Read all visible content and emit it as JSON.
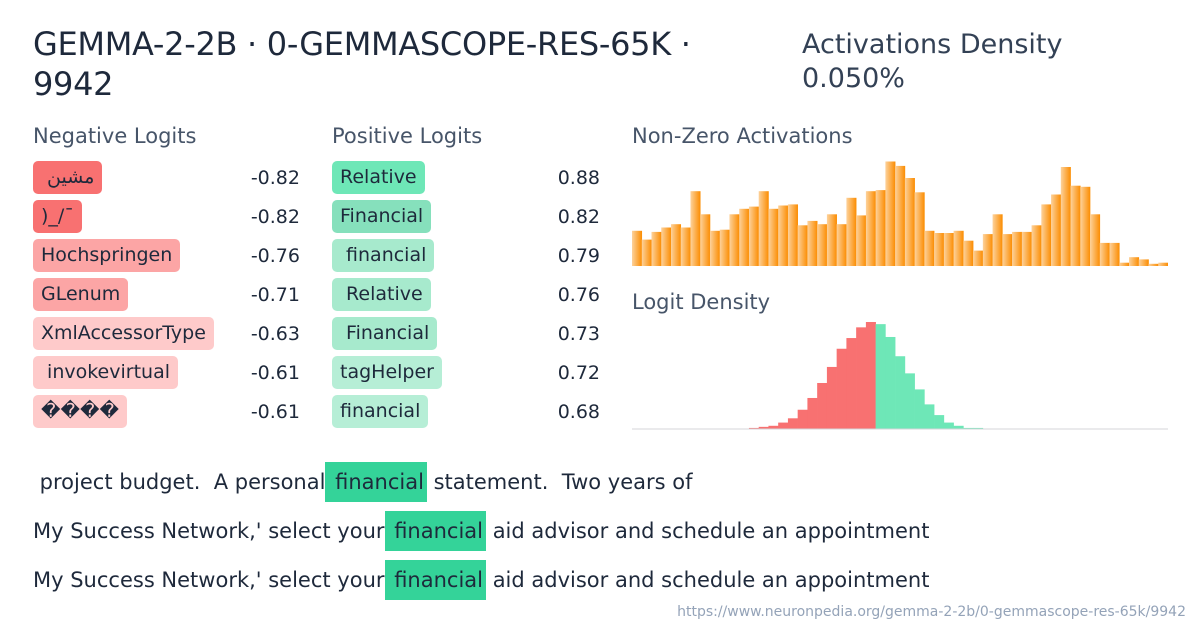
{
  "header": {
    "title": "GEMMA-2-2B · 0-GEMMASCOPE-RES-65K · 9942",
    "density_label": "Activations Density",
    "density_value": "0.050%"
  },
  "negative_logits": {
    "heading": "Negative Logits",
    "items": [
      {
        "token": " مشين",
        "value": "-0.82",
        "color": "#f87171"
      },
      {
        "token": ")_/¯",
        "value": "-0.82",
        "color": "#f87171"
      },
      {
        "token": "Hochspringen",
        "value": "-0.76",
        "color": "#fca5a5"
      },
      {
        "token": "GLenum",
        "value": "-0.71",
        "color": "#fca5a5"
      },
      {
        "token": "XmlAccessorType",
        "value": "-0.63",
        "color": "#fecaca"
      },
      {
        "token": " invokevirtual",
        "value": "-0.61",
        "color": "#fecaca"
      },
      {
        "token": "����",
        "value": "-0.61",
        "color": "#fecaca"
      }
    ]
  },
  "positive_logits": {
    "heading": "Positive Logits",
    "items": [
      {
        "token": "Relative",
        "value": "0.88",
        "color": "#6ee7b7"
      },
      {
        "token": "Financial",
        "value": "0.82",
        "color": "#86e0bc"
      },
      {
        "token": " financial",
        "value": "0.79",
        "color": "#a7eacd"
      },
      {
        "token": " Relative",
        "value": "0.76",
        "color": "#a7eacd"
      },
      {
        "token": " Financial",
        "value": "0.73",
        "color": "#a7eacd"
      },
      {
        "token": "tagHelper",
        "value": "0.72",
        "color": "#b6eed6"
      },
      {
        "token": "financial",
        "value": "0.68",
        "color": "#b6eed6"
      }
    ]
  },
  "nonzero": {
    "heading": "Non-Zero Activations",
    "color_start": "#fdd29c",
    "color_end": "#fb8c00",
    "bars": [
      0.32,
      0.24,
      0.31,
      0.35,
      0.38,
      0.35,
      0.68,
      0.47,
      0.32,
      0.33,
      0.47,
      0.52,
      0.54,
      0.68,
      0.52,
      0.55,
      0.56,
      0.37,
      0.41,
      0.38,
      0.47,
      0.38,
      0.62,
      0.46,
      0.68,
      0.69,
      0.95,
      0.91,
      0.8,
      0.67,
      0.32,
      0.3,
      0.3,
      0.32,
      0.23,
      0.14,
      0.29,
      0.47,
      0.29,
      0.31,
      0.31,
      0.37,
      0.56,
      0.65,
      0.9,
      0.73,
      0.72,
      0.47,
      0.21,
      0.21,
      0.03,
      0.08,
      0.06,
      0.02,
      0.03
    ]
  },
  "logit_density": {
    "heading": "Logit Density",
    "neg_color": "#f87171",
    "pos_color": "#6ee7b7",
    "bars": [
      0,
      0,
      0,
      0,
      0,
      0,
      0,
      0,
      0,
      0,
      0,
      0,
      0.01,
      0.02,
      0.03,
      0.06,
      0.1,
      0.18,
      0.29,
      0.43,
      0.58,
      0.75,
      0.85,
      0.95,
      1.0,
      0.98,
      0.86,
      0.68,
      0.52,
      0.37,
      0.23,
      0.13,
      0.06,
      0.03,
      0.01,
      0.01,
      0,
      0,
      0,
      0,
      0,
      0,
      0,
      0,
      0,
      0,
      0,
      0,
      0,
      0,
      0,
      0,
      0,
      0,
      0
    ],
    "split_index": 25
  },
  "examples": [
    {
      "before": " project budget.  A personal",
      "highlight": " financial",
      "after": " statement.  Two years of"
    },
    {
      "before": "My Success Network,' select your",
      "highlight": " financial",
      "after": " aid advisor and schedule an appointment"
    },
    {
      "before": "My Success Network,' select your",
      "highlight": " financial",
      "after": " aid advisor and schedule an appointment"
    }
  ],
  "footer": {
    "url": "https://www.neuronpedia.org/gemma-2-2b/0-gemmascope-res-65k/9942"
  }
}
